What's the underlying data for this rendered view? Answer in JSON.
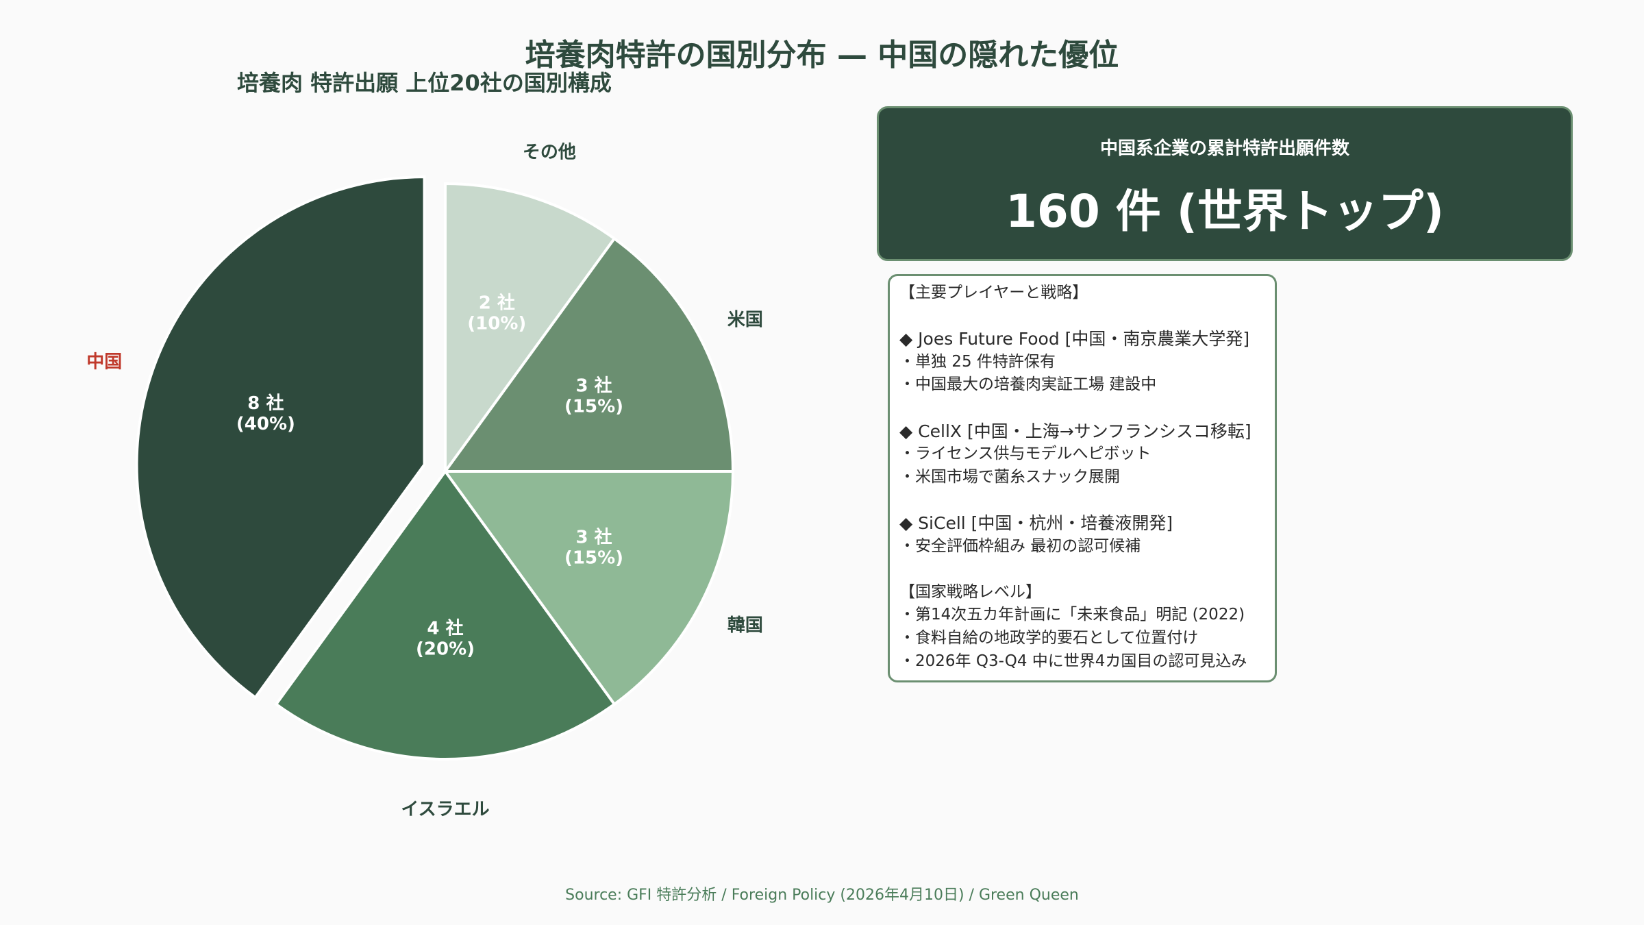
{
  "title": "培養肉特許の国別分布 — 中国の隠れた優位",
  "chart_data": {
    "type": "pie",
    "title": "培養肉 特許出願 上位20社の国別構成",
    "unit": "社",
    "slices": [
      {
        "label": "その他",
        "value": 2,
        "percent": 10,
        "color": "#c8d9cc",
        "text_color": "#ffffff",
        "label_color": "#2e4a3d",
        "explode": false
      },
      {
        "label": "米国",
        "value": 3,
        "percent": 15,
        "color": "#6b8f71",
        "text_color": "#ffffff",
        "label_color": "#2e4a3d",
        "explode": false
      },
      {
        "label": "韓国",
        "value": 3,
        "percent": 15,
        "color": "#8fb996",
        "text_color": "#ffffff",
        "label_color": "#2e4a3d",
        "explode": false
      },
      {
        "label": "イスラエル",
        "value": 4,
        "percent": 20,
        "color": "#4a7c59",
        "text_color": "#ffffff",
        "label_color": "#2e4a3d",
        "explode": false
      },
      {
        "label": "中国",
        "value": 8,
        "percent": 40,
        "color": "#2e4a3d",
        "text_color": "#ffffff",
        "label_color": "#c0392b",
        "explode": true
      }
    ],
    "start_angle_deg": 90,
    "direction": "clockwise",
    "legend": "none"
  },
  "callout": {
    "label": "中国系企業の累計特許出願件数",
    "value": "160 件 (世界トップ)"
  },
  "info_lines": [
    " 【主要プレイヤーと戦略】",
    "",
    "◆ Joes Future Food [中国・南京農業大学発]",
    "   ・単独 25 件特許保有",
    "   ・中国最大の培養肉実証工場 建設中",
    "",
    "◆ CellX [中国・上海→サンフランシスコ移転]",
    "   ・ライセンス供与モデルへピボット",
    "   ・米国市場で菌糸スナック展開",
    "",
    "◆ SiCell [中国・杭州・培養液開発]",
    "   ・安全評価枠組み 最初の認可候補",
    "",
    " 【国家戦略レベル】",
    "・第14次五カ年計画に「未来食品」明記 (2022)",
    "・食料自給の地政学的要石として位置付け",
    "・2026年 Q3-Q4 中に世界4カ国目の認可見込み"
  ],
  "source": "Source: GFI 特許分析 / Foreign Policy (2026年4月10日) / Green Queen",
  "colors": {
    "primary": "#2e4a3d",
    "accent_red": "#c0392b",
    "border": "#6b8f71",
    "background": "#fafafa"
  }
}
